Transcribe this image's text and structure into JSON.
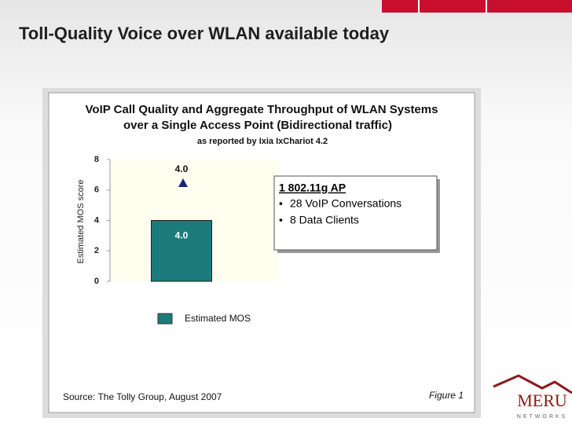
{
  "slide_title": "Toll-Quality Voice over WLAN available today",
  "chart_data": {
    "type": "bar",
    "title": "VoIP Call Quality and Aggregate Throughput of WLAN Systems",
    "title_line2": "over a Single Access Point (Bidirectional traffic)",
    "subtitle": "as reported by Ixia IxChariot 4.2",
    "ylabel": "Estimated MOS score",
    "categories": [
      null
    ],
    "series": [
      {
        "name": "Estimated MOS",
        "color": "#1b7b7b",
        "values": [
          4.0
        ],
        "value_labels": [
          "4.0"
        ]
      }
    ],
    "annotations": [
      "4.0"
    ],
    "ylim": [
      0,
      8
    ],
    "yticks": [
      0,
      2,
      4,
      6,
      8
    ],
    "source": "Source: The Tolly Group, August 2007",
    "figure": "Figure 1"
  },
  "textbox": {
    "heading": "1 802.11g AP",
    "bullets": [
      "28 VoIP Conversations",
      "8 Data Clients"
    ]
  },
  "logo": {
    "name": "MERU",
    "tagline": "NETWORKS"
  }
}
